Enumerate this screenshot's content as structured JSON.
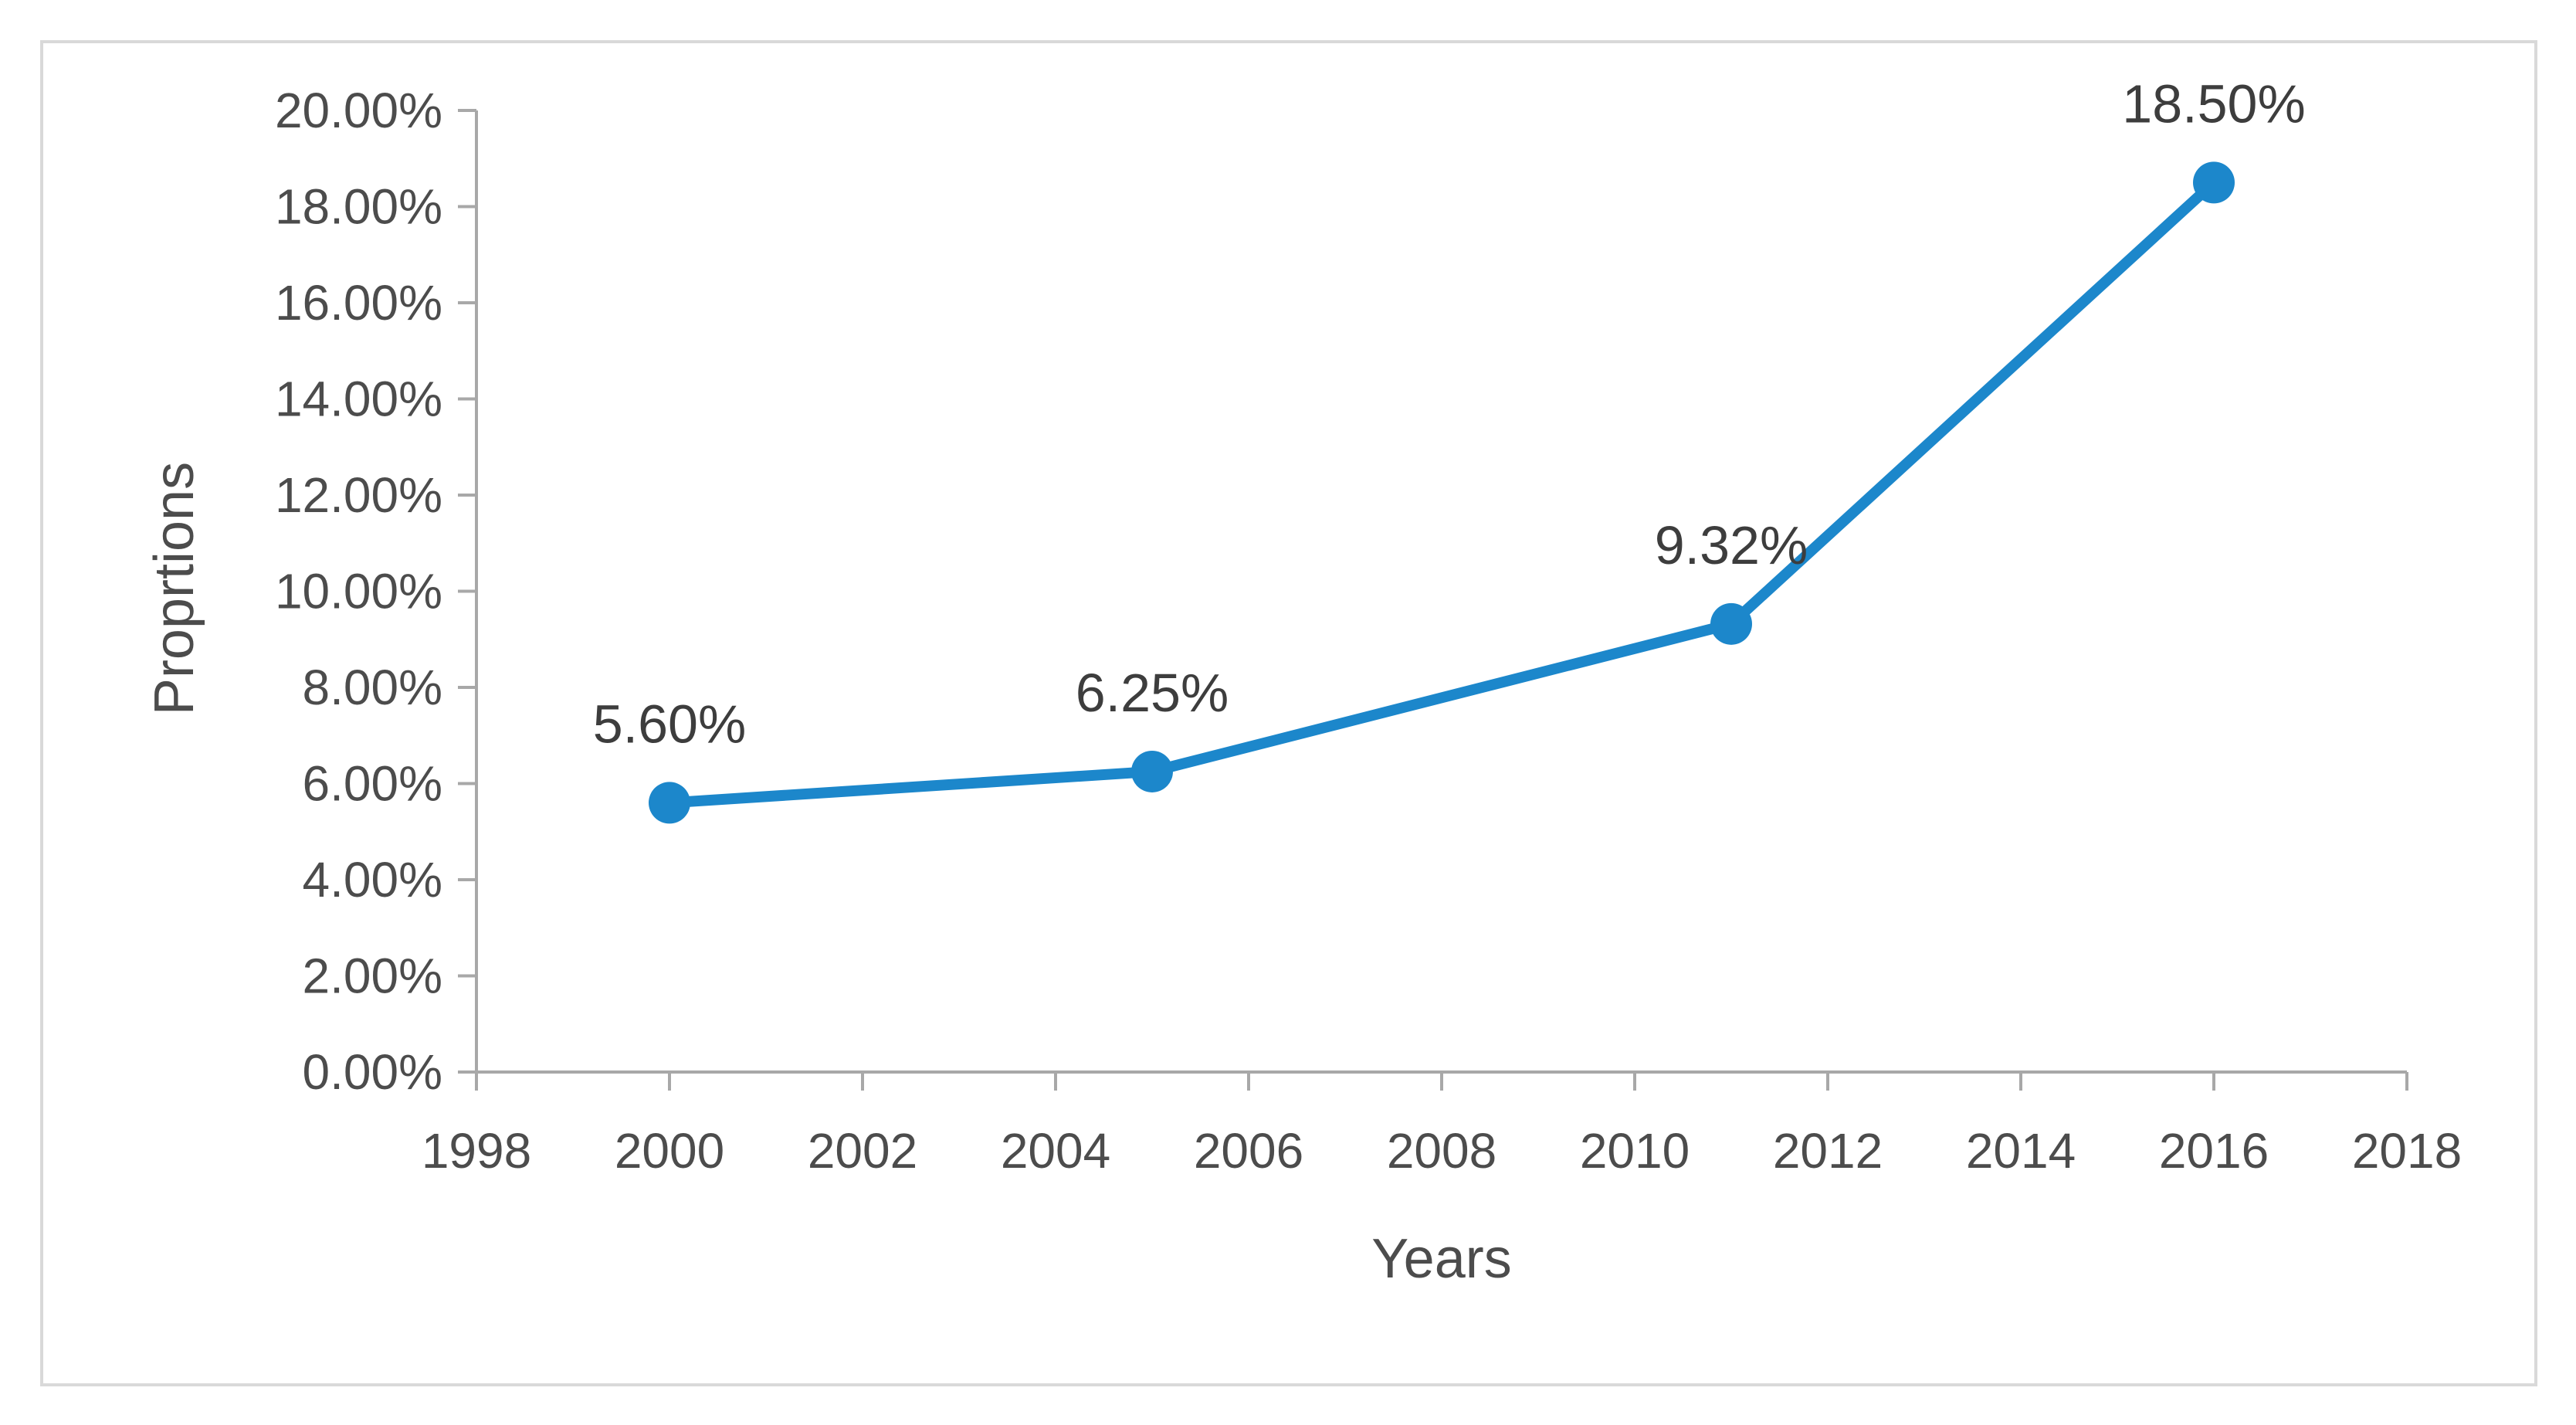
{
  "chart_data": {
    "type": "line",
    "title": "",
    "xlabel": "Years",
    "ylabel": "Proprtions",
    "x": [
      2000,
      2005,
      2011,
      2016
    ],
    "values": [
      5.6,
      6.25,
      9.32,
      18.5
    ],
    "point_labels": [
      "5.60%",
      "6.25%",
      "9.32%",
      "18.50%"
    ],
    "xlim": [
      1998,
      2018
    ],
    "ylim": [
      0,
      20
    ],
    "x_ticks": [
      1998,
      2000,
      2002,
      2004,
      2006,
      2008,
      2010,
      2012,
      2014,
      2016,
      2018
    ],
    "x_tick_labels": [
      "1998",
      "2000",
      "2002",
      "2004",
      "2006",
      "2008",
      "2010",
      "2012",
      "2014",
      "2016",
      "2018"
    ],
    "y_ticks": [
      0,
      2,
      4,
      6,
      8,
      10,
      12,
      14,
      16,
      18,
      20
    ],
    "y_tick_labels": [
      "0.00%",
      "2.00%",
      "4.00%",
      "6.00%",
      "8.00%",
      "10.00%",
      "12.00%",
      "14.00%",
      "16.00%",
      "18.00%",
      "20.00%"
    ],
    "grid": false,
    "legend": "none",
    "colors": {
      "line": "#1c87cb",
      "marker": "#1c87cb",
      "axis": "#a8a8a8",
      "tick_label": "#4c4c4c",
      "axis_title": "#4c4c4c",
      "data_label": "#3d3d3d",
      "frame_border": "#d9d9d9",
      "background": "#ffffff"
    }
  }
}
